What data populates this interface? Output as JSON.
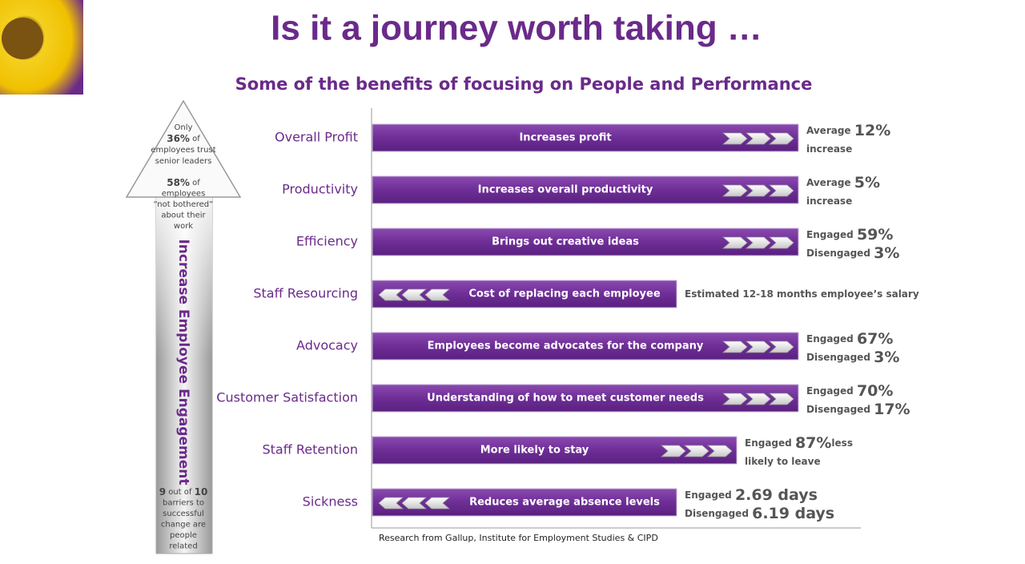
{
  "header": {
    "title": "Is it a journey worth taking …",
    "subtitle": "Some of the benefits of focusing on People and Performance"
  },
  "arrow": {
    "label": "Increase Employee Engagement",
    "top_lines": [
      [
        "Only"
      ],
      [
        "36%",
        " of"
      ],
      [
        "employees trust"
      ],
      [
        "senior leaders"
      ]
    ],
    "middle_lines": [
      [
        "58%",
        " of"
      ],
      [
        "employees"
      ],
      [
        "“not bothered”"
      ],
      [
        "about their"
      ],
      [
        "work"
      ]
    ],
    "bottom_lines": [
      [
        "9",
        " out of ",
        "10"
      ],
      [
        "barriers to"
      ],
      [
        "successful"
      ],
      [
        "change are"
      ],
      [
        "people"
      ],
      [
        "related"
      ]
    ]
  },
  "rows": [
    {
      "label": "Overall Profit",
      "bar_text": "Increases profit",
      "direction": "right",
      "note": [
        [
          "Average ",
          "12%"
        ],
        [
          "increase"
        ]
      ]
    },
    {
      "label": "Productivity",
      "bar_text": "Increases overall productivity",
      "direction": "right",
      "note": [
        [
          "Average ",
          "5%"
        ],
        [
          "increase"
        ]
      ]
    },
    {
      "label": "Efficiency",
      "bar_text": "Brings out creative ideas",
      "direction": "right",
      "note": [
        [
          "Engaged ",
          "59%"
        ],
        [
          "Disengaged ",
          "3%"
        ]
      ]
    },
    {
      "label": "Staff Resourcing",
      "bar_text": "Cost of replacing each employee",
      "direction": "left",
      "note": [
        [
          "Estimated 12-18  months employee’s salary"
        ]
      ]
    },
    {
      "label": "Advocacy",
      "bar_text": "Employees become advocates for the company",
      "direction": "right",
      "note": [
        [
          "Engaged ",
          "67%"
        ],
        [
          "Disengaged ",
          "3%"
        ]
      ]
    },
    {
      "label": "Customer Satisfaction",
      "bar_text": "Understanding of how to meet customer needs",
      "direction": "right",
      "note": [
        [
          "Engaged ",
          "70%"
        ],
        [
          "Disengaged ",
          "17%"
        ]
      ]
    },
    {
      "label": "Staff Retention",
      "bar_text": "More likely to stay",
      "direction": "right",
      "note": [
        [
          "Engaged ",
          "87%",
          "less"
        ],
        [
          "likely to leave"
        ]
      ]
    },
    {
      "label": "Sickness",
      "bar_text": "Reduces average absence levels",
      "direction": "left",
      "note": [
        [
          "Engaged ",
          "2.69 days"
        ],
        [
          "Disengaged ",
          "6.19 days"
        ]
      ]
    }
  ],
  "source": "Research from Gallup, Institute for Employment Studies & CIPD"
}
